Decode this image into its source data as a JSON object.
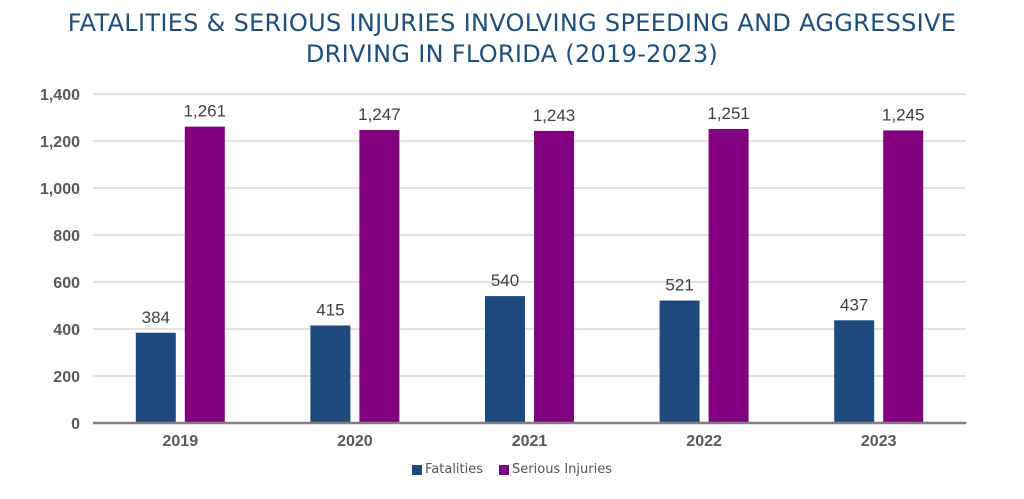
{
  "chart_data": {
    "type": "bar",
    "title_lines": [
      "FATALITIES & SERIOUS INJURIES INVOLVING SPEEDING AND AGGRESSIVE",
      "DRIVING IN FLORIDA (2019-2023)"
    ],
    "categories": [
      "2019",
      "2020",
      "2021",
      "2022",
      "2023"
    ],
    "series": [
      {
        "name": "Fatalities",
        "values": [
          384,
          415,
          540,
          521,
          437
        ],
        "color": "#1f497d"
      },
      {
        "name": "Serious Injuries",
        "values": [
          1261,
          1247,
          1243,
          1251,
          1245
        ],
        "color": "#800080"
      }
    ],
    "data_labels": [
      [
        "384",
        "415",
        "540",
        "521",
        "437"
      ],
      [
        "1,261",
        "1,247",
        "1,243",
        "1,251",
        "1,245"
      ]
    ],
    "ylim": [
      0,
      1400
    ],
    "yticks": [
      "0",
      "200",
      "400",
      "600",
      "800",
      "1,000",
      "1,200",
      "1,400"
    ],
    "grid": true,
    "legend": "bottom"
  }
}
